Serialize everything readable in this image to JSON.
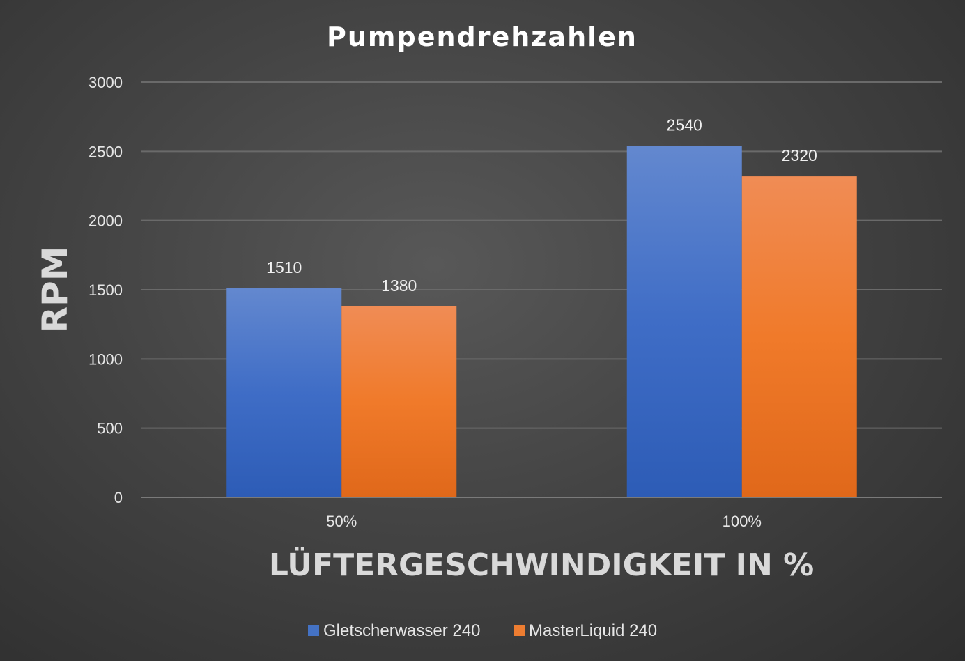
{
  "chart_data": {
    "type": "bar",
    "title": "Pumpendrehzahlen",
    "xlabel": "LÜFTERGESCHWINDIGKEIT IN %",
    "ylabel": "RPM",
    "categories": [
      "50%",
      "100%"
    ],
    "series": [
      {
        "name": "Gletscherwasser 240",
        "values": [
          1510,
          2540
        ],
        "color": "#4472C4"
      },
      {
        "name": "MasterLiquid 240",
        "values": [
          1380,
          2320
        ],
        "color": "#ED7D31"
      }
    ],
    "ylim": [
      0,
      3000
    ],
    "yticks": [
      0,
      500,
      1000,
      1500,
      2000,
      2500,
      3000
    ],
    "grid": true,
    "legend": "bottom"
  }
}
